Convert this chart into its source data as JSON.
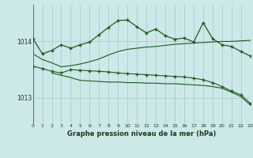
{
  "title": "Graphe pression niveau de la mer (hPa)",
  "bg": "#cde8e8",
  "grid_color": "#b0d0d0",
  "lc": "#1a5c1a",
  "xlim": [
    0,
    23
  ],
  "ylim": [
    1012.55,
    1014.65
  ],
  "yticks": [
    1013.0,
    1014.0
  ],
  "xticks": [
    0,
    1,
    2,
    3,
    4,
    5,
    6,
    7,
    8,
    9,
    10,
    11,
    12,
    13,
    14,
    15,
    16,
    17,
    18,
    19,
    20,
    21,
    22,
    23
  ],
  "s1x": [
    0,
    1,
    2,
    3,
    4,
    5,
    6,
    7,
    8,
    9,
    10,
    11,
    12,
    13,
    14,
    15,
    16,
    17,
    18,
    19,
    20,
    21,
    22,
    23
  ],
  "s1y": [
    1014.05,
    1013.78,
    1013.84,
    1013.94,
    1013.88,
    1013.94,
    1013.99,
    1014.12,
    1014.25,
    1014.37,
    1014.38,
    1014.26,
    1014.15,
    1014.22,
    1014.1,
    1014.04,
    1014.06,
    1013.99,
    1014.33,
    1014.05,
    1013.94,
    1013.91,
    1013.82,
    1013.74
  ],
  "s2x": [
    0,
    1,
    2,
    3,
    4,
    5,
    6,
    7,
    8,
    9,
    10,
    11,
    12,
    13,
    14,
    15,
    16,
    17,
    18,
    19,
    20,
    21,
    22,
    23
  ],
  "s2y": [
    1013.78,
    1013.68,
    1013.62,
    1013.55,
    1013.57,
    1013.6,
    1013.64,
    1013.69,
    1013.76,
    1013.82,
    1013.86,
    1013.88,
    1013.9,
    1013.91,
    1013.93,
    1013.95,
    1013.96,
    1013.97,
    1013.98,
    1013.99,
    1014.0,
    1014.0,
    1014.01,
    1014.02
  ],
  "s3x": [
    0,
    1,
    2,
    3,
    4,
    5,
    6,
    7,
    8,
    9,
    10,
    11,
    12,
    13,
    14,
    15,
    16,
    17,
    18,
    19,
    20,
    21,
    22,
    23
  ],
  "s3y": [
    1013.56,
    1013.52,
    1013.47,
    1013.44,
    1013.5,
    1013.49,
    1013.48,
    1013.47,
    1013.46,
    1013.44,
    1013.43,
    1013.42,
    1013.41,
    1013.4,
    1013.39,
    1013.38,
    1013.37,
    1013.35,
    1013.32,
    1013.27,
    1013.2,
    1013.12,
    1013.05,
    1012.9
  ],
  "s4x": [
    2,
    3,
    4,
    5,
    6,
    7,
    8,
    9,
    10,
    11,
    12,
    13,
    14,
    15,
    16,
    17,
    18,
    19,
    20,
    21,
    22,
    23
  ],
  "s4y": [
    1013.44,
    1013.4,
    1013.36,
    1013.31,
    1013.3,
    1013.29,
    1013.28,
    1013.28,
    1013.27,
    1013.27,
    1013.26,
    1013.26,
    1013.25,
    1013.25,
    1013.24,
    1013.23,
    1013.22,
    1013.2,
    1013.17,
    1013.1,
    1013.02,
    1012.87
  ]
}
